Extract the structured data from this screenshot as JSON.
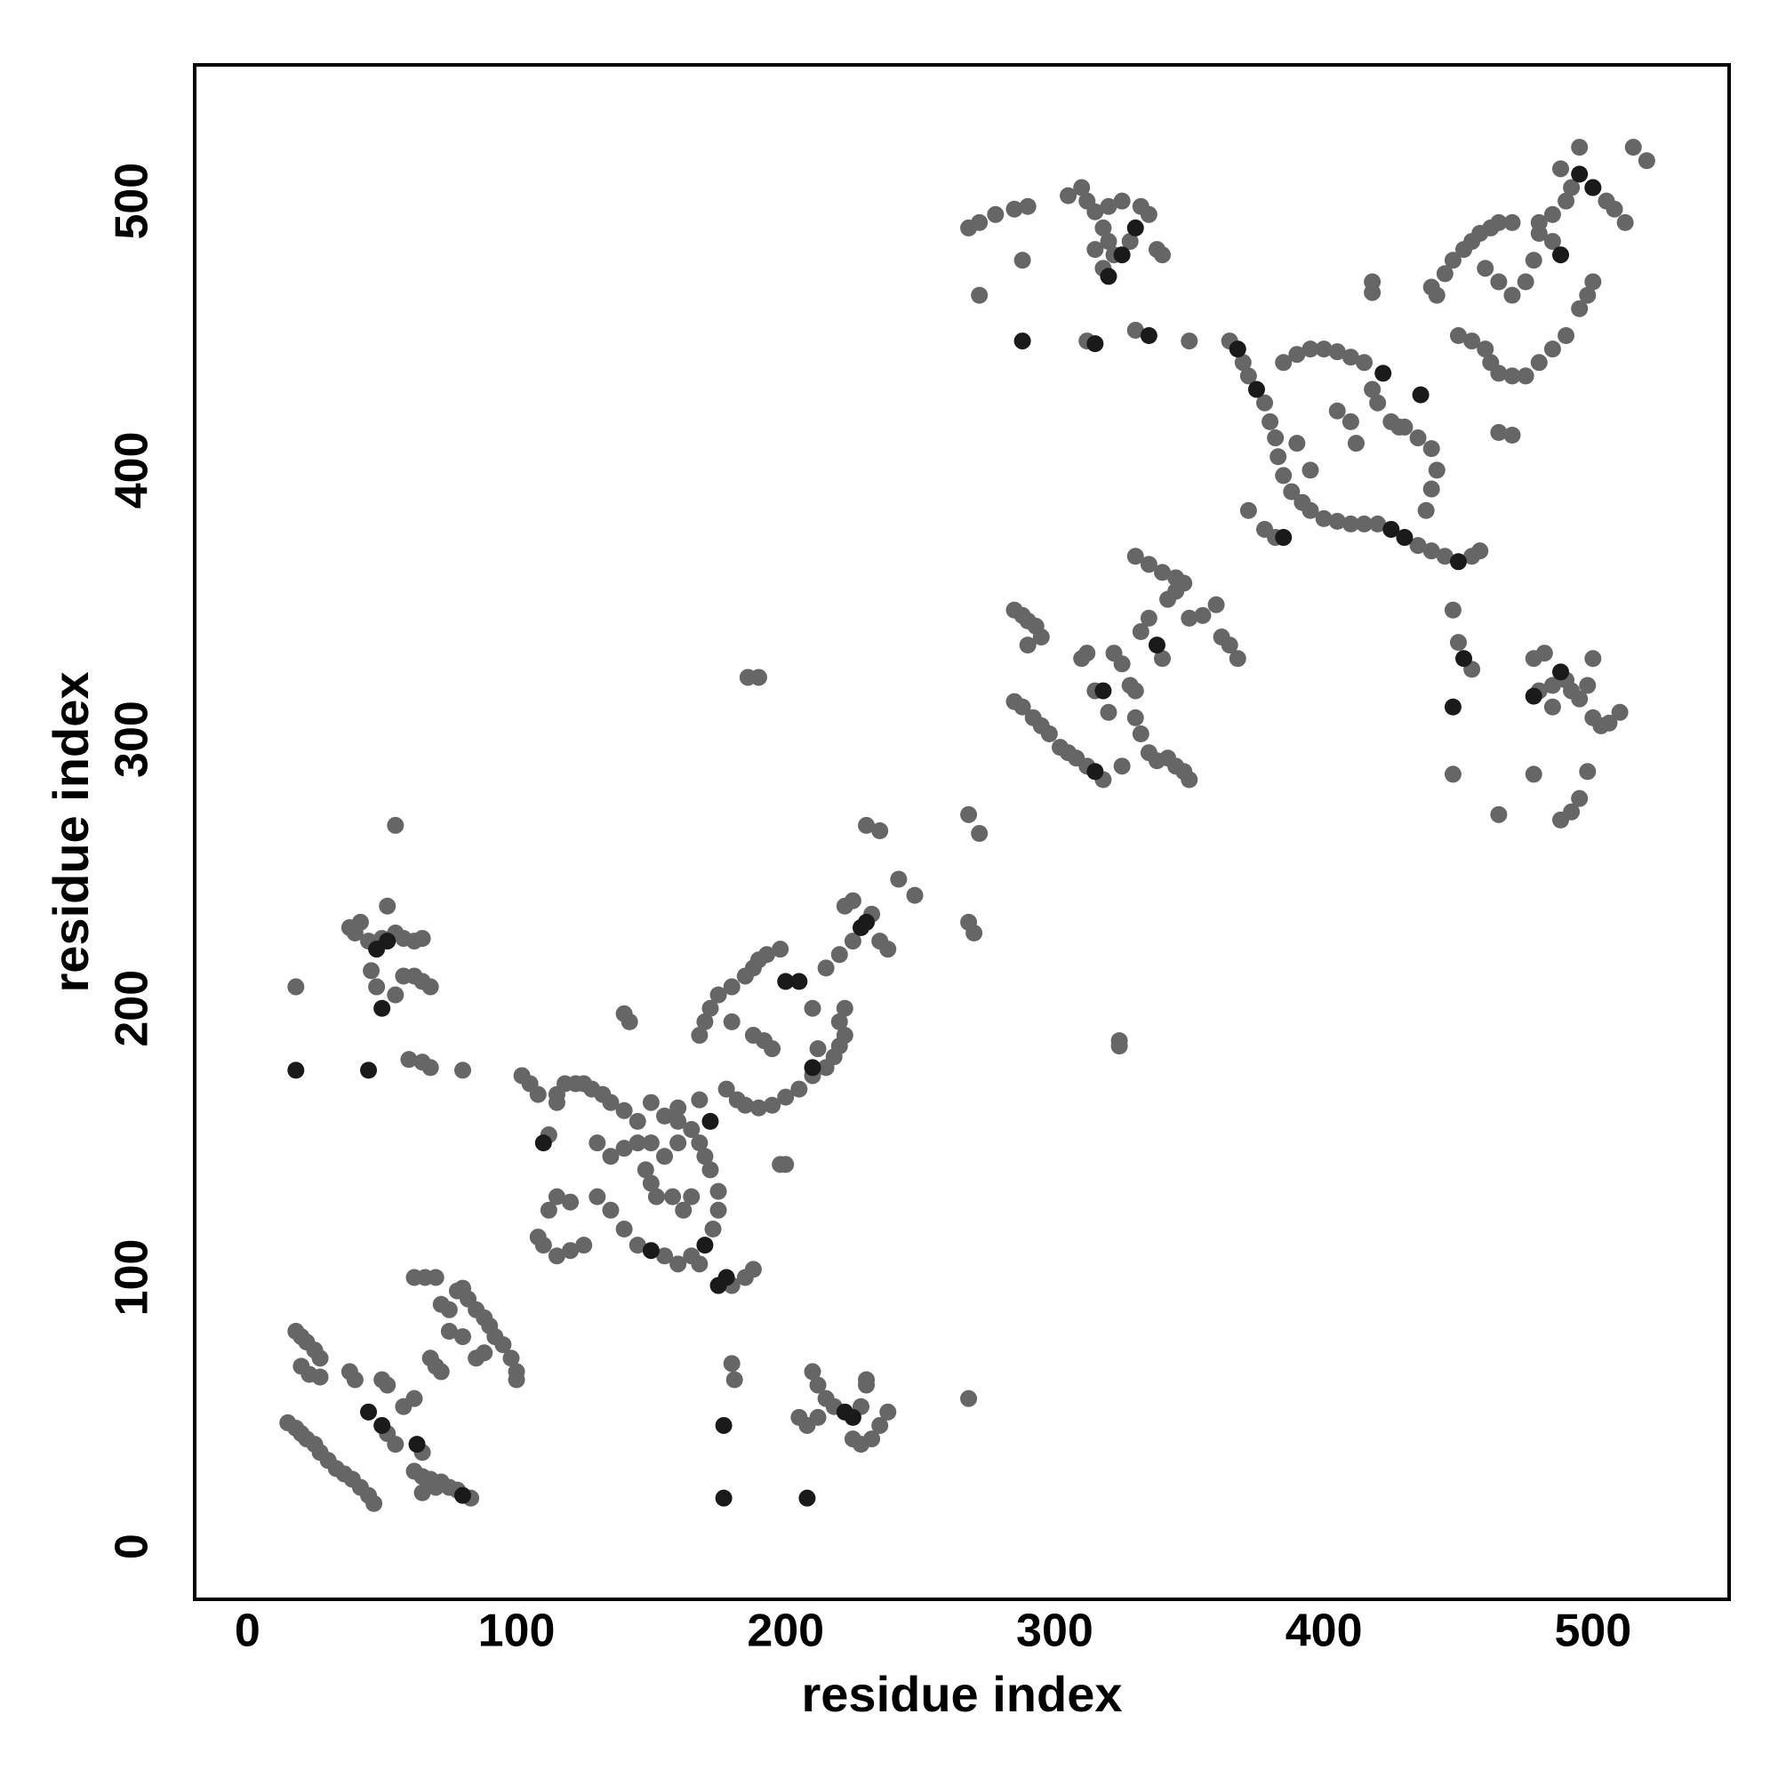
{
  "chart_data": {
    "type": "scatter",
    "xlabel": "residue index",
    "ylabel": "residue index",
    "xlim": [
      -19.6,
      550.6
    ],
    "ylim": [
      -19.6,
      550.6
    ],
    "xticks": [
      0,
      100,
      200,
      300,
      400,
      500
    ],
    "yticks": [
      0,
      100,
      200,
      300,
      400,
      500
    ],
    "series": [
      {
        "color": "#666666",
        "x": [
          15,
          18,
          20,
          22,
          25,
          27,
          30,
          33,
          36,
          39,
          42,
          45,
          47,
          18,
          20,
          22,
          25,
          27,
          20,
          23,
          27,
          62,
          66,
          70,
          72,
          75,
          78,
          80,
          82,
          85,
          88,
          90,
          92,
          95,
          98,
          100,
          100,
          88,
          85,
          80,
          75,
          62,
          65,
          68,
          72,
          75,
          78,
          83,
          65,
          70,
          38,
          40,
          52,
          55,
          58,
          62,
          65,
          68,
          70,
          72,
          50,
          52,
          18,
          60,
          65,
          68,
          80,
          38,
          40,
          42,
          45,
          50,
          52,
          55,
          58,
          62,
          65,
          48,
          55,
          58,
          62,
          65,
          68,
          55,
          46,
          181,
          180,
          210,
          212,
          215,
          218,
          228,
          230,
          232,
          235,
          238,
          205,
          208,
          212,
          225,
          228,
          268,
          230,
          102,
          105,
          108,
          115,
          118,
          122,
          125,
          128,
          132,
          135,
          140,
          145,
          150,
          155,
          160,
          165,
          168,
          170,
          172,
          175,
          175,
          173,
          168,
          180,
          185,
          188,
          165,
          160,
          155,
          145,
          140,
          135,
          130,
          125,
          120,
          115,
          110,
          108,
          112,
          115,
          120,
          112,
          115,
          130,
          135,
          140,
          145,
          148,
          150,
          152,
          155,
          160,
          162,
          165,
          140,
          142,
          200,
          198,
          150,
          158,
          168,
          170,
          172,
          175,
          180,
          185,
          188,
          190,
          193,
          198,
          178,
          182,
          185,
          190,
          195,
          200,
          205,
          210,
          215,
          218,
          220,
          222,
          220,
          222,
          188,
          192,
          195,
          210,
          215,
          220,
          225,
          232,
          235,
          238,
          222,
          225,
          230,
          235,
          242,
          248,
          190,
          186,
          212,
          180,
          168,
          160,
          268,
          272,
          268,
          270,
          324,
          324,
          285,
          288,
          290,
          293,
          295,
          290,
          285,
          288,
          292,
          295,
          298,
          302,
          305,
          308,
          312,
          318,
          310,
          312,
          315,
          322,
          325,
          328,
          330,
          332,
          335,
          340,
          342,
          345,
          348,
          350,
          355,
          360,
          362,
          365,
          368,
          330,
          335,
          340,
          345,
          330,
          332,
          335,
          338,
          342,
          345,
          348,
          350,
          325,
          320,
          268,
          272,
          278,
          285,
          290,
          272,
          288,
          312,
          330,
          350,
          305,
          310,
          312,
          315,
          318,
          320,
          322,
          318,
          328,
          332,
          335,
          338,
          340,
          315,
          320,
          325,
          365,
          370,
          372,
          378,
          380,
          382,
          383,
          385,
          388,
          392,
          395,
          400,
          405,
          410,
          415,
          420,
          435,
          440,
          445,
          455,
          458,
          385,
          390,
          395,
          400,
          405,
          410,
          415,
          418,
          420,
          425,
          430,
          435,
          440,
          442,
          440,
          438,
          412,
          410,
          405,
          372,
          378,
          382,
          395,
          390,
          440,
          442,
          445,
          448,
          452,
          455,
          458,
          462,
          465,
          470,
          450,
          455,
          460,
          462,
          465,
          470,
          475,
          480,
          485,
          490,
          495,
          498,
          500,
          485,
          480,
          478,
          475,
          470,
          465,
          460,
          480,
          485,
          490,
          492,
          500,
          505,
          508,
          512,
          515,
          520,
          495,
          488,
          470,
          465,
          428,
          418,
          418,
          448,
          450,
          455,
          448,
          465,
          480,
          485,
          490,
          492,
          495,
          498,
          500,
          500,
          503,
          506,
          510,
          485,
          482,
          478,
          488,
          492,
          495,
          498,
          478
        ],
        "values": [
          46,
          44,
          42,
          40,
          38,
          35,
          32,
          29,
          27,
          25,
          22,
          19,
          16,
          80,
          78,
          76,
          73,
          70,
          67,
          64,
          63,
          100,
          100,
          100,
          90,
          88,
          95,
          96,
          92,
          88,
          85,
          82,
          78,
          75,
          70,
          65,
          62,
          72,
          70,
          78,
          80,
          28,
          26,
          25,
          24,
          22,
          21,
          18,
          20,
          22,
          65,
          62,
          42,
          38,
          52,
          55,
          35,
          70,
          67,
          65,
          62,
          60,
          208,
          181,
          180,
          178,
          177,
          230,
          228,
          232,
          225,
          226,
          238,
          228,
          226,
          225,
          226,
          208,
          205,
          212,
          212,
          210,
          208,
          268,
          214,
          62,
          68,
          65,
          60,
          55,
          52,
          52,
          60,
          40,
          45,
          50,
          48,
          45,
          48,
          40,
          38,
          55,
          62,
          175,
          172,
          168,
          168,
          172,
          172,
          172,
          170,
          168,
          165,
          162,
          158,
          165,
          160,
          158,
          155,
          150,
          145,
          140,
          132,
          125,
          118,
          105,
          97,
          100,
          103,
          108,
          105,
          108,
          112,
          118,
          125,
          130,
          112,
          110,
          108,
          112,
          115,
          125,
          130,
          128,
          153,
          165,
          150,
          145,
          148,
          150,
          140,
          135,
          130,
          145,
          150,
          125,
          130,
          198,
          195,
          142,
          142,
          150,
          130,
          190,
          195,
          200,
          205,
          208,
          212,
          215,
          218,
          220,
          222,
          170,
          166,
          164,
          163,
          164,
          167,
          170,
          175,
          178,
          182,
          186,
          190,
          195,
          200,
          190,
          188,
          185,
          200,
          215,
          220,
          225,
          235,
          225,
          222,
          238,
          240,
          268,
          266,
          248,
          242,
          323,
          323,
          185,
          195,
          166,
          163,
          272,
          265,
          232,
          228,
          188,
          186,
          348,
          346,
          344,
          342,
          338,
          335,
          314,
          312,
          308,
          305,
          302,
          297,
          295,
          293,
          290,
          285,
          330,
          332,
          318,
          332,
          328,
          320,
          318,
          340,
          345,
          330,
          352,
          355,
          358,
          345,
          346,
          350,
          338,
          335,
          330,
          368,
          365,
          362,
          360,
          308,
          302,
          295,
          292,
          293,
          290,
          288,
          285,
          290,
          310,
          490,
          492,
          495,
          497,
          498,
          465,
          478,
          448,
          452,
          448,
          502,
          505,
          500,
          496,
          490,
          485,
          480,
          475,
          485,
          498,
          495,
          482,
          480,
          482,
          498,
          500,
          448,
          440,
          435,
          425,
          418,
          412,
          405,
          398,
          392,
          388,
          385,
          382,
          381,
          380,
          380,
          380,
          372,
          370,
          368,
          368,
          370,
          440,
          443,
          445,
          445,
          444,
          442,
          440,
          430,
          425,
          418,
          416,
          412,
          408,
          400,
          393,
          385,
          410,
          418,
          422,
          385,
          378,
          375,
          400,
          410,
          468,
          465,
          473,
          478,
          482,
          485,
          488,
          490,
          492,
          492,
          450,
          448,
          445,
          440,
          436,
          435,
          435,
          440,
          445,
          450,
          460,
          465,
          470,
          485,
          488,
          478,
          470,
          465,
          470,
          475,
          492,
          495,
          500,
          505,
          505,
          500,
          497,
          492,
          520,
          515,
          520,
          512,
          413,
          414,
          416,
          470,
          466,
          348,
          336,
          326,
          287,
          272,
          318,
          320,
          322,
          318,
          315,
          320,
          330,
          308,
          305,
          306,
          310,
          312,
          332,
          287,
          270,
          273,
          278,
          288,
          330
        ]
      },
      {
        "color": "#1a1a1a",
        "x": [
          18,
          45,
          50,
          48,
          52,
          50,
          45,
          63,
          80,
          177,
          177,
          208,
          225,
          222,
          110,
          175,
          178,
          170,
          150,
          172,
          200,
          205,
          210,
          228,
          230,
          318,
          315,
          338,
          368,
          375,
          425,
          430,
          450,
          436,
          422,
          385,
          488,
          495,
          500,
          488,
          478,
          452,
          448,
          288,
          315,
          335,
          320,
          325,
          330
        ],
        "values": [
          177,
          177,
          200,
          222,
          225,
          45,
          50,
          38,
          19,
          45,
          18,
          18,
          48,
          50,
          150,
          97,
          100,
          112,
          110,
          158,
          210,
          210,
          178,
          230,
          232,
          318,
          288,
          335,
          445,
          430,
          378,
          375,
          366,
          428,
          436,
          375,
          480,
          510,
          505,
          325,
          316,
          330,
          312,
          448,
          447,
          450,
          472,
          480,
          490
        ]
      }
    ]
  }
}
